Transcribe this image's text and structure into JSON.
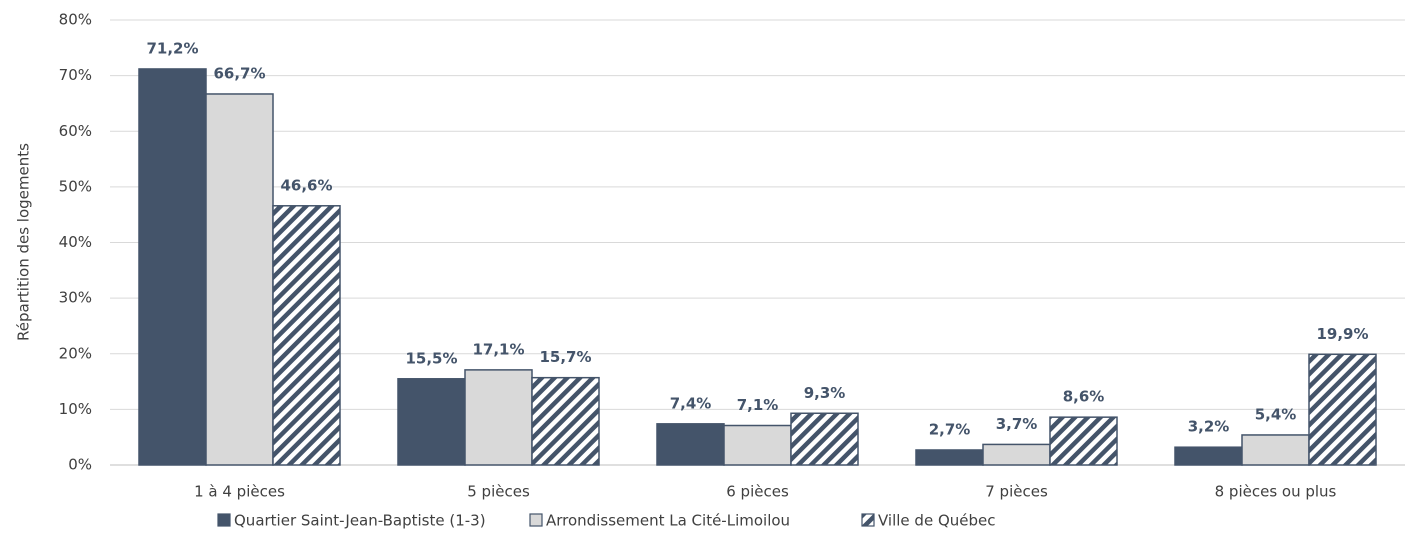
{
  "chart_data": {
    "type": "bar",
    "y_axis_label": "Répartition des logements",
    "categories": [
      "1 à 4 pièces",
      "5 pièces",
      "6 pièces",
      "7 pièces",
      "8 pièces ou plus"
    ],
    "series": [
      {
        "name": "Quartier Saint-Jean-Baptiste (1-3)",
        "color": "#44546a",
        "values": [
          71.2,
          15.5,
          7.4,
          2.7,
          3.2
        ],
        "value_labels": [
          "71,2%",
          "15,5%",
          "7,4%",
          "2,7%",
          "3,2%"
        ]
      },
      {
        "name": "Arrondissement La Cité-Limoilou",
        "color": "#d9d9d9",
        "values": [
          66.7,
          17.1,
          7.1,
          3.7,
          5.4
        ],
        "value_labels": [
          "66,7%",
          "17,1%",
          "7,1%",
          "3,7%",
          "5,4%"
        ]
      },
      {
        "name": "Ville de Québec",
        "color": "#44546a",
        "hatch": true,
        "values": [
          46.6,
          15.7,
          9.3,
          8.6,
          19.9
        ],
        "value_labels": [
          "46,6%",
          "15,7%",
          "9,3%",
          "8,6%",
          "19,9%"
        ]
      }
    ],
    "ylim": [
      0,
      80
    ],
    "yticks": [
      {
        "value": 0,
        "label": "0%"
      },
      {
        "value": 10,
        "label": "10%"
      },
      {
        "value": 20,
        "label": "20%"
      },
      {
        "value": 30,
        "label": "30%"
      },
      {
        "value": 40,
        "label": "40%"
      },
      {
        "value": 50,
        "label": "50%"
      },
      {
        "value": 60,
        "label": "60%"
      },
      {
        "value": 70,
        "label": "70%"
      },
      {
        "value": 80,
        "label": "80%"
      }
    ],
    "grid": true,
    "legend": "bottom"
  }
}
